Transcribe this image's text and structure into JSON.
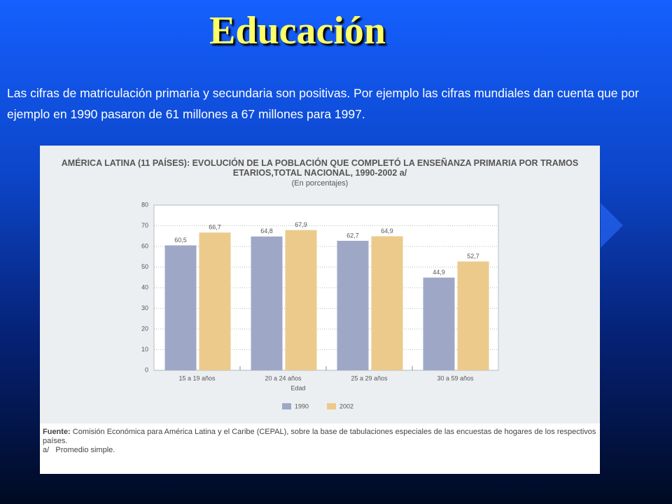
{
  "slide": {
    "title": "Educación",
    "text": "Las cifras de matriculación primaria y secundaria son positivas. Por ejemplo las cifras mundiales dan cuenta que por ejemplo en 1990 pasaron de 61 millones a 67 millones para 1997."
  },
  "chart_data": {
    "type": "bar",
    "title": "AMÉRICA LATINA (11 PAÍSES): EVOLUCIÓN DE LA POBLACIÓN QUE COMPLETÓ LA ENSEÑANZA PRIMARIA POR TRAMOS ETARIOS,TOTAL NACIONAL, 1990-2002 a/",
    "subtitle": "(En porcentajes)",
    "x_label": "Edad",
    "categories": [
      "15 a 19 años",
      "20 a 24 años",
      "25 a 29 años",
      "30 a 59 años"
    ],
    "series": [
      {
        "name": "1990",
        "color": "#9ea8c6",
        "values": [
          60.5,
          64.8,
          62.7,
          44.9
        ],
        "value_labels": [
          "60,5",
          "64,8",
          "62,7",
          "44,9"
        ]
      },
      {
        "name": "2002",
        "color": "#ebca8c",
        "values": [
          66.7,
          67.9,
          64.9,
          52.7
        ],
        "value_labels": [
          "66,7",
          "67,9",
          "64,9",
          "52,7"
        ]
      }
    ],
    "ylim": [
      0,
      80
    ],
    "yticks": [
      0,
      10,
      20,
      30,
      40,
      50,
      60,
      70,
      80
    ],
    "grid": true,
    "source_label": "Fuente:",
    "source": "Comisión Económica para América Latina y el Caribe (CEPAL), sobre la base de tabulaciones especiales de las encuestas de hogares de los respectivos países.",
    "note_label": "a/",
    "note": "Promedio simple."
  }
}
